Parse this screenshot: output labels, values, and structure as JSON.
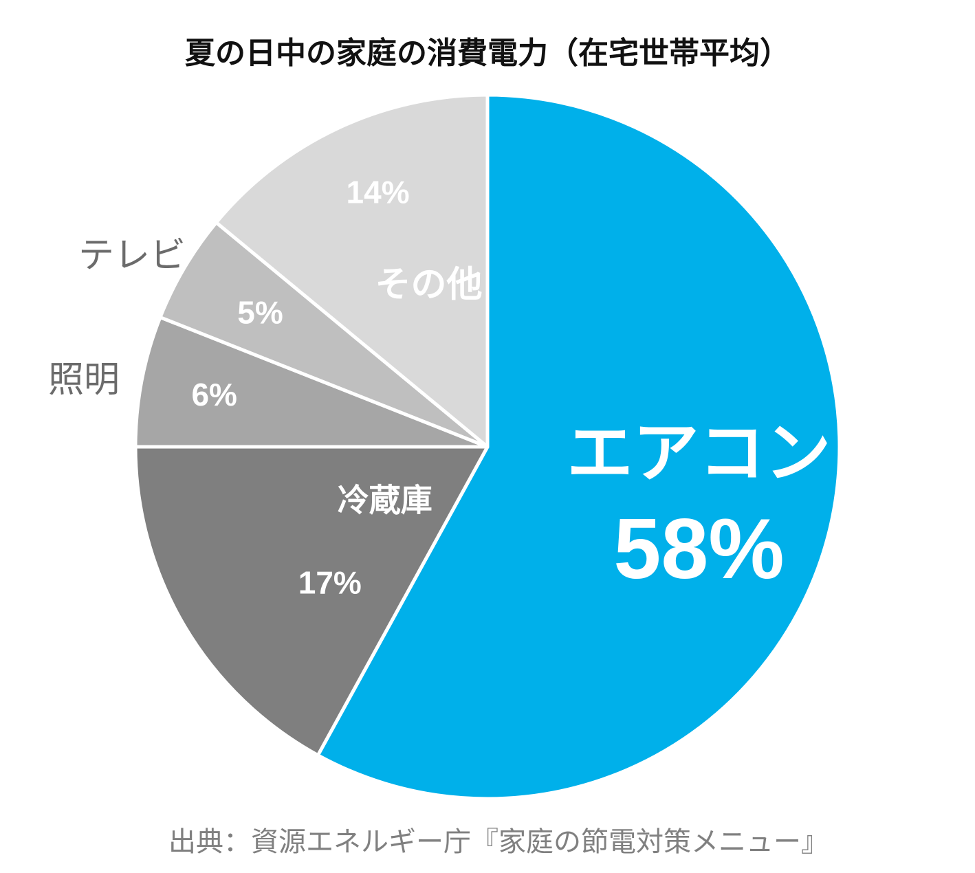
{
  "chart_data": {
    "type": "pie",
    "title": "夏の日中の家庭の消費電力（在宅世帯平均）",
    "source": "出典：資源エネルギー庁『家庭の節電対策メニュー』",
    "slices": [
      {
        "label": "エアコン",
        "value": 58,
        "value_label": "58%",
        "color": "#00b0ea",
        "label_placement": "inside"
      },
      {
        "label": "冷蔵庫",
        "value": 17,
        "value_label": "17%",
        "color": "#7f7f7f",
        "label_placement": "inside"
      },
      {
        "label": "照明",
        "value": 6,
        "value_label": "6%",
        "color": "#a6a6a6",
        "label_placement": "outside"
      },
      {
        "label": "テレビ",
        "value": 5,
        "value_label": "5%",
        "color": "#bfbfbf",
        "label_placement": "outside"
      },
      {
        "label": "その他",
        "value": 14,
        "value_label": "14%",
        "color": "#d9d9d9",
        "label_placement": "inside"
      }
    ],
    "start_position": "12 o'clock",
    "direction": "clockwise",
    "legend": "none"
  }
}
